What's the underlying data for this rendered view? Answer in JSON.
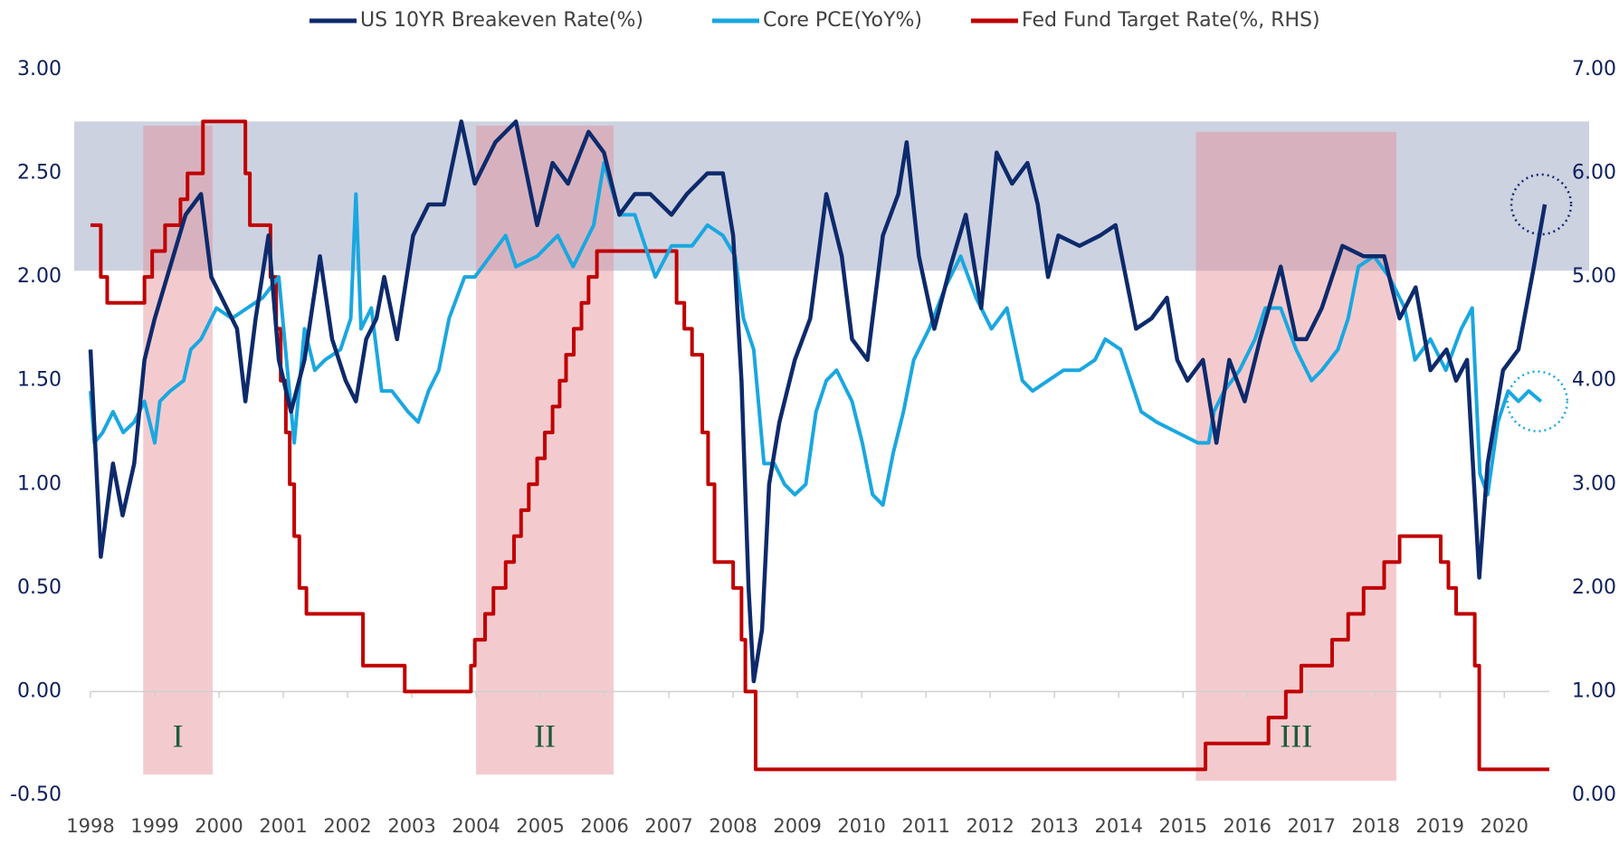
{
  "chart_data": {
    "type": "line",
    "xlim": [
      1998,
      2020.7
    ],
    "xticks": [
      1998,
      1999,
      2000,
      2001,
      2002,
      2003,
      2004,
      2005,
      2006,
      2007,
      2008,
      2009,
      2010,
      2011,
      2012,
      2013,
      2014,
      2015,
      2016,
      2017,
      2018,
      2019,
      2020
    ],
    "ylim": [
      -0.5,
      3.0
    ],
    "yticks": [
      {
        "value": -0.5,
        "label": "-0.50"
      },
      {
        "value": 0,
        "label": "0.00"
      },
      {
        "value": 0.5,
        "label": "0.50"
      },
      {
        "value": 1,
        "label": "1.00"
      },
      {
        "value": 1.5,
        "label": "1.50"
      },
      {
        "value": 2,
        "label": "2.00"
      },
      {
        "value": 2.5,
        "label": "2.50"
      },
      {
        "value": 3,
        "label": "3.00"
      }
    ],
    "y2lim": [
      0,
      7
    ],
    "y2ticks": [
      {
        "value": 0,
        "label": "0.00"
      },
      {
        "value": 1,
        "label": "1.00"
      },
      {
        "value": 2,
        "label": "2.00"
      },
      {
        "value": 3,
        "label": "3.00"
      },
      {
        "value": 4,
        "label": "4.00"
      },
      {
        "value": 5,
        "label": "5.00"
      },
      {
        "value": 6,
        "label": "6.00"
      },
      {
        "value": 7,
        "label": "7.00"
      }
    ],
    "legend": "top",
    "band_range": [
      2.03,
      2.75
    ],
    "periods": [
      {
        "label": "I",
        "x0": 1998.82,
        "x1": 1999.9,
        "y0": -0.4,
        "y1": 2.73
      },
      {
        "label": "II",
        "x0": 2004.0,
        "x1": 2006.14,
        "y0": -0.4,
        "y1": 2.73
      },
      {
        "label": "III",
        "x0": 2015.2,
        "x1": 2018.32,
        "y0": -0.43,
        "y1": 2.7
      }
    ],
    "series": [
      {
        "name": "US 10YR Breakeven Rate(%)",
        "color": "#0d2a6b",
        "x": [
          1998.0,
          1998.16,
          1998.35,
          1998.5,
          1998.68,
          1998.84,
          1999.0,
          1999.24,
          1999.48,
          1999.72,
          1999.88,
          2000.04,
          2000.28,
          2000.41,
          2000.57,
          2000.77,
          2000.93,
          2001.12,
          2001.33,
          2001.57,
          2001.76,
          2001.97,
          2002.13,
          2002.29,
          2002.45,
          2002.57,
          2002.77,
          2003.02,
          2003.26,
          2003.5,
          2003.77,
          2003.98,
          2004.3,
          2004.62,
          2004.95,
          2005.19,
          2005.43,
          2005.75,
          2005.99,
          2006.23,
          2006.47,
          2006.71,
          2007.04,
          2007.28,
          2007.6,
          2007.84,
          2008.0,
          2008.13,
          2008.24,
          2008.32,
          2008.45,
          2008.56,
          2008.72,
          2008.96,
          2009.2,
          2009.45,
          2009.69,
          2009.85,
          2010.09,
          2010.33,
          2010.57,
          2010.7,
          2010.89,
          2011.13,
          2011.38,
          2011.62,
          2011.86,
          2012.1,
          2012.34,
          2012.58,
          2012.74,
          2012.9,
          2013.06,
          2013.39,
          2013.71,
          2013.95,
          2014.11,
          2014.27,
          2014.51,
          2014.75,
          2014.91,
          2015.07,
          2015.31,
          2015.52,
          2015.72,
          2015.96,
          2016.2,
          2016.52,
          2016.76,
          2016.92,
          2017.16,
          2017.48,
          2017.81,
          2018.13,
          2018.37,
          2018.62,
          2018.85,
          2019.1,
          2019.25,
          2019.42,
          2019.61,
          2019.74,
          2019.98,
          2020.22,
          2020.46,
          2020.63
        ],
        "values": [
          1.65,
          0.65,
          1.1,
          0.85,
          1.1,
          1.6,
          1.8,
          2.05,
          2.3,
          2.4,
          2.0,
          1.9,
          1.75,
          1.4,
          1.8,
          2.2,
          1.6,
          1.35,
          1.6,
          2.1,
          1.7,
          1.5,
          1.4,
          1.7,
          1.8,
          2.0,
          1.7,
          2.2,
          2.35,
          2.35,
          2.75,
          2.45,
          2.65,
          2.75,
          2.25,
          2.55,
          2.45,
          2.7,
          2.6,
          2.3,
          2.4,
          2.4,
          2.3,
          2.4,
          2.5,
          2.5,
          2.2,
          1.5,
          0.5,
          0.05,
          0.3,
          1.0,
          1.3,
          1.6,
          1.8,
          2.4,
          2.1,
          1.7,
          1.6,
          2.2,
          2.4,
          2.65,
          2.1,
          1.75,
          2.05,
          2.3,
          1.85,
          2.6,
          2.45,
          2.55,
          2.35,
          2.0,
          2.2,
          2.15,
          2.2,
          2.25,
          2.0,
          1.75,
          1.8,
          1.9,
          1.6,
          1.5,
          1.6,
          1.2,
          1.6,
          1.4,
          1.7,
          2.05,
          1.7,
          1.7,
          1.85,
          2.15,
          2.1,
          2.1,
          1.8,
          1.95,
          1.55,
          1.65,
          1.5,
          1.6,
          0.55,
          1.1,
          1.55,
          1.65,
          2.05,
          2.35
        ]
      },
      {
        "name": "Core PCE(YoY%)",
        "color": "#1aa7e0",
        "x": [
          1998.0,
          1998.06,
          1998.19,
          1998.35,
          1998.51,
          1998.68,
          1998.84,
          1999.0,
          1999.08,
          1999.24,
          1999.45,
          1999.56,
          1999.72,
          1999.96,
          2000.2,
          2000.44,
          2000.68,
          2000.93,
          2001.05,
          2001.17,
          2001.33,
          2001.49,
          2001.65,
          2001.89,
          2002.05,
          2002.13,
          2002.21,
          2002.37,
          2002.53,
          2002.69,
          2002.94,
          2003.1,
          2003.26,
          2003.42,
          2003.58,
          2003.82,
          2003.98,
          2004.22,
          2004.46,
          2004.62,
          2004.95,
          2005.27,
          2005.51,
          2005.67,
          2005.83,
          2005.99,
          2006.23,
          2006.47,
          2006.63,
          2006.79,
          2007.04,
          2007.36,
          2007.6,
          2007.84,
          2008.03,
          2008.16,
          2008.32,
          2008.48,
          2008.64,
          2008.8,
          2008.96,
          2009.13,
          2009.29,
          2009.45,
          2009.61,
          2009.85,
          2010.01,
          2010.17,
          2010.33,
          2010.49,
          2010.65,
          2010.81,
          2011.05,
          2011.3,
          2011.54,
          2011.78,
          2012.02,
          2012.26,
          2012.5,
          2012.66,
          2012.9,
          2013.14,
          2013.39,
          2013.63,
          2013.79,
          2014.03,
          2014.19,
          2014.35,
          2014.59,
          2014.91,
          2015.23,
          2015.4,
          2015.48,
          2015.64,
          2015.88,
          2016.12,
          2016.28,
          2016.52,
          2016.76,
          2017.0,
          2017.16,
          2017.41,
          2017.57,
          2017.73,
          2017.97,
          2018.21,
          2018.45,
          2018.61,
          2018.85,
          2019.09,
          2019.33,
          2019.5,
          2019.62,
          2019.74,
          2019.9,
          2020.06,
          2020.22,
          2020.38,
          2020.57
        ],
        "values": [
          1.45,
          1.2,
          1.25,
          1.35,
          1.25,
          1.3,
          1.4,
          1.2,
          1.4,
          1.45,
          1.5,
          1.65,
          1.7,
          1.85,
          1.8,
          1.85,
          1.9,
          2.0,
          1.6,
          1.2,
          1.75,
          1.55,
          1.6,
          1.65,
          1.8,
          2.4,
          1.75,
          1.85,
          1.45,
          1.45,
          1.35,
          1.3,
          1.45,
          1.55,
          1.8,
          2.0,
          2.0,
          2.1,
          2.2,
          2.05,
          2.1,
          2.2,
          2.05,
          2.15,
          2.25,
          2.55,
          2.3,
          2.3,
          2.15,
          2.0,
          2.15,
          2.15,
          2.25,
          2.2,
          2.1,
          1.8,
          1.65,
          1.1,
          1.1,
          1.0,
          0.95,
          1.0,
          1.35,
          1.5,
          1.55,
          1.4,
          1.2,
          0.95,
          0.9,
          1.15,
          1.35,
          1.6,
          1.75,
          1.95,
          2.1,
          1.9,
          1.75,
          1.85,
          1.5,
          1.45,
          1.5,
          1.55,
          1.55,
          1.6,
          1.7,
          1.65,
          1.5,
          1.35,
          1.3,
          1.25,
          1.2,
          1.2,
          1.35,
          1.45,
          1.55,
          1.7,
          1.85,
          1.85,
          1.65,
          1.5,
          1.55,
          1.65,
          1.8,
          2.05,
          2.1,
          2.0,
          1.85,
          1.6,
          1.7,
          1.55,
          1.75,
          1.85,
          1.05,
          0.95,
          1.3,
          1.45,
          1.4,
          1.45,
          1.4
        ]
      },
      {
        "name": "Fed Fund Target Rate(%, RHS)",
        "color": "#c00000",
        "axis": "y2",
        "step": true,
        "x": [
          1998.0,
          1998.16,
          1998.26,
          1998.84,
          1998.96,
          1999.16,
          1999.4,
          1999.51,
          1999.75,
          2000.41,
          2000.48,
          2000.8,
          2000.89,
          2000.96,
          2001.04,
          2001.1,
          2001.17,
          2001.25,
          2001.36,
          2002.24,
          2002.89,
          2003.92,
          2003.98,
          2004.14,
          2004.27,
          2004.46,
          2004.59,
          2004.7,
          2004.82,
          2004.95,
          2005.07,
          2005.19,
          2005.3,
          2005.4,
          2005.52,
          2005.64,
          2005.75,
          2005.88,
          2007.12,
          2007.24,
          2007.36,
          2007.52,
          2007.61,
          2007.71,
          2008.0,
          2008.13,
          2008.19,
          2008.35,
          2015.35,
          2016.33,
          2016.6,
          2016.84,
          2017.32,
          2017.57,
          2017.81,
          2018.13,
          2018.37,
          2019.01,
          2019.13,
          2019.25,
          2019.54,
          2019.61,
          2020.7
        ],
        "values": [
          5.5,
          5.0,
          4.75,
          5.0,
          5.25,
          5.5,
          5.75,
          6.0,
          6.5,
          6.0,
          5.5,
          5.0,
          4.5,
          4.0,
          3.5,
          3.0,
          2.5,
          2.0,
          1.75,
          1.25,
          1.0,
          1.25,
          1.5,
          1.75,
          2.0,
          2.25,
          2.5,
          2.75,
          3.0,
          3.25,
          3.5,
          3.75,
          4.0,
          4.25,
          4.5,
          4.75,
          5.0,
          5.25,
          4.75,
          4.5,
          4.25,
          3.5,
          3.0,
          2.25,
          2.0,
          1.5,
          1.0,
          0.25,
          0.5,
          0.75,
          1.0,
          1.25,
          1.5,
          1.75,
          2.0,
          2.25,
          2.5,
          2.25,
          2.0,
          1.75,
          1.25,
          0.25,
          0.25
        ]
      }
    ]
  }
}
